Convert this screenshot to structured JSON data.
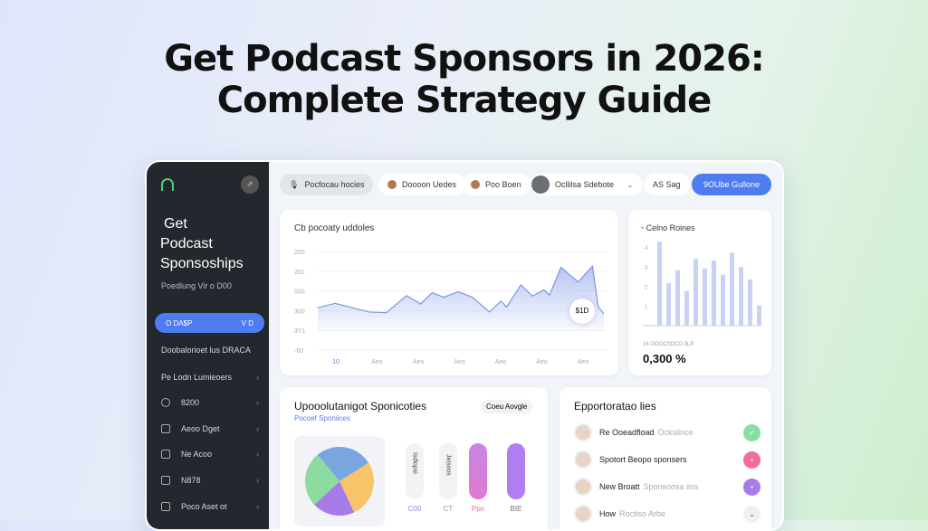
{
  "headline": {
    "line1": "Get Podcast Sponsors in 2026:",
    "line2": "Complete Strategy Guide"
  },
  "sidebar": {
    "title_lines": [
      "Get",
      "Podcast",
      "Sponsoships"
    ],
    "subtitle": "Poedlung Vir o D00",
    "active_button": {
      "label": "O DA$P",
      "right": "V D"
    },
    "section": "Doobalorioet lus DRACA",
    "items": [
      {
        "label": "Pe Lodn Lumieoers",
        "icon": "none"
      },
      {
        "label": "8200",
        "icon": "headset-icon"
      },
      {
        "label": "Aeoo Dget",
        "icon": "square-icon"
      },
      {
        "label": "Ne Acoo",
        "icon": "document-icon"
      },
      {
        "label": "N878",
        "icon": "chat-icon"
      },
      {
        "label": "Poco Aset ot",
        "icon": "square-icon"
      }
    ]
  },
  "topnav": {
    "tabs": [
      "Pocfocau hocies",
      "Doooon Uedes",
      "Poo Boen",
      "Ocllilsa Sdebote",
      "AS Sag"
    ],
    "cta": "9OUbe Gullone"
  },
  "line_card": {
    "title": "Cb pocoaty uddoles",
    "badge": "$1D"
  },
  "bar_card": {
    "title": "Celno Roines",
    "caption": "16 OOOCSDCO 3LP",
    "value": "0,300 %"
  },
  "pie_card": {
    "title": "Upooolutanigot Sponicoties",
    "subtitle": "Pocoef Sponiices",
    "button": "Coeu Aovgle",
    "pills": [
      {
        "label": "C00",
        "text": "Isdlopsi"
      },
      {
        "label": "CT",
        "text": "Jeisoos"
      },
      {
        "label": "Ppo"
      },
      {
        "label": "BIE"
      }
    ]
  },
  "spons_card": {
    "title": "Epportoratao lies",
    "rows": [
      {
        "name": "Re Ooeadfload",
        "muted": "Ocksilnce",
        "color": "#86e0a2",
        "icon": "check-icon"
      },
      {
        "name": "Spotort Beopo sponsers",
        "muted": "",
        "color": "#f06f9a",
        "icon": "dot-icon"
      },
      {
        "name": "New Broatt",
        "muted": "Sponsoosa iins",
        "color": "#a77be8",
        "icon": "dot-icon"
      },
      {
        "name": "How",
        "muted": "Roctiso Arbe",
        "color": "#eef0f3",
        "icon": "chevron-down-icon"
      }
    ]
  },
  "chart_data": [
    {
      "type": "area",
      "title": "Cb pocoaty uddoles",
      "y_tick_labels": [
        "-60",
        "3Y1",
        "300",
        "500",
        "201",
        "200"
      ],
      "ylim": [
        0,
        5
      ],
      "x_tick_labels": [
        "10",
        "Aeo",
        "Aeo",
        "Aeo",
        "Aeo",
        "Aeo",
        "Aeo"
      ],
      "x": [
        0,
        6,
        18,
        24,
        31,
        36,
        40,
        44,
        49,
        54,
        60,
        64,
        66,
        71,
        75,
        79,
        81,
        85,
        91,
        96,
        98,
        100
      ],
      "y": [
        2.14,
        2.37,
        1.93,
        1.9,
        2.76,
        2.34,
        2.91,
        2.68,
        2.96,
        2.68,
        1.93,
        2.48,
        2.18,
        3.31,
        2.74,
        3.05,
        2.79,
        4.2,
        3.45,
        4.26,
        2.21,
        1.83
      ],
      "color": "#7d95e8"
    },
    {
      "type": "bar",
      "title": "Celno Roines",
      "y_tick_labels": [
        "1",
        "2",
        "3",
        "4"
      ],
      "ylim": [
        0,
        4.5
      ],
      "values": [
        4.26,
        2.16,
        2.81,
        1.76,
        3.39,
        2.9,
        3.3,
        2.58,
        3.7,
        2.97,
        2.34,
        1.03
      ],
      "color": "#c9d2f4"
    },
    {
      "type": "pie",
      "values": [
        27,
        27,
        20,
        26
      ],
      "colors": [
        "#7aa6e0",
        "#f8c46a",
        "#a77be8",
        "#8ddba0"
      ]
    }
  ]
}
